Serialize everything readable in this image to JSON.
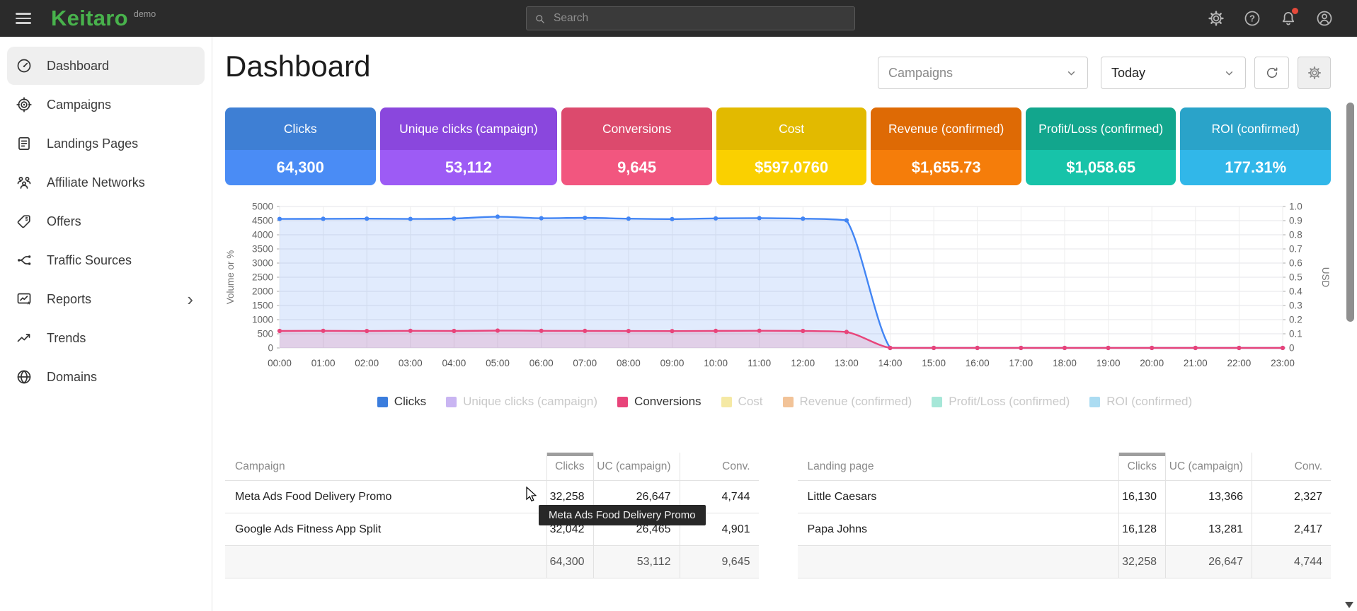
{
  "topbar": {
    "logo": "Keitaro",
    "badge": "demo",
    "search_placeholder": "Search"
  },
  "sidebar": {
    "items": [
      {
        "label": "Dashboard",
        "icon": "speedometer-icon",
        "active": true
      },
      {
        "label": "Campaigns",
        "icon": "target-icon"
      },
      {
        "label": "Landings Pages",
        "icon": "page-icon"
      },
      {
        "label": "Affiliate Networks",
        "icon": "people-icon"
      },
      {
        "label": "Offers",
        "icon": "tag-icon"
      },
      {
        "label": "Traffic Sources",
        "icon": "branch-icon"
      },
      {
        "label": "Reports",
        "icon": "report-icon",
        "chevron": true
      },
      {
        "label": "Trends",
        "icon": "trend-icon"
      },
      {
        "label": "Domains",
        "icon": "globe-icon"
      }
    ]
  },
  "header": {
    "title": "Dashboard",
    "campaign_filter": "Campaigns",
    "date_filter": "Today"
  },
  "cards": [
    {
      "label": "Clicks",
      "value": "64,300",
      "header_color": "#3e7fd4",
      "body_color": "#4a8cf5"
    },
    {
      "label": "Unique clicks (campaign)",
      "value": "53,112",
      "header_color": "#8a47dd",
      "body_color": "#9d5bf5",
      "wide": true
    },
    {
      "label": "Conversions",
      "value": "9,645",
      "header_color": "#dc4a6d",
      "body_color": "#f2567f"
    },
    {
      "label": "Cost",
      "value": "$597.0760",
      "header_color": "#e2ba00",
      "body_color": "#fad000"
    },
    {
      "label": "Revenue (confirmed)",
      "value": "$1,655.73",
      "header_color": "#de6a05",
      "body_color": "#f57d0a"
    },
    {
      "label": "Profit/Loss (confirmed)",
      "value": "$1,058.65",
      "header_color": "#12a68d",
      "body_color": "#17c3a9"
    },
    {
      "label": "ROI (confirmed)",
      "value": "177.31%",
      "header_color": "#2aa3c9",
      "body_color": "#31b7e9"
    }
  ],
  "chart_data": {
    "type": "line",
    "x": [
      "00:00",
      "01:00",
      "02:00",
      "03:00",
      "04:00",
      "05:00",
      "06:00",
      "07:00",
      "08:00",
      "09:00",
      "10:00",
      "11:00",
      "12:00",
      "13:00",
      "14:00",
      "15:00",
      "16:00",
      "17:00",
      "18:00",
      "19:00",
      "20:00",
      "21:00",
      "22:00",
      "23:00"
    ],
    "series": [
      {
        "name": "Clicks",
        "color": "#4285f4",
        "fill": "rgba(66,133,244,0.16)",
        "values": [
          4560,
          4565,
          4570,
          4560,
          4575,
          4640,
          4585,
          4600,
          4570,
          4555,
          4580,
          4590,
          4570,
          4510,
          0,
          0,
          0,
          0,
          0,
          0,
          0,
          0,
          0,
          0
        ]
      },
      {
        "name": "Conversions",
        "color": "#e8447a",
        "fill": "rgba(232,68,122,0.16)",
        "values": [
          600,
          606,
          598,
          604,
          600,
          612,
          606,
          602,
          597,
          595,
          603,
          607,
          600,
          565,
          0,
          0,
          0,
          0,
          0,
          0,
          0,
          0,
          0,
          0
        ]
      }
    ],
    "hidden_series": [
      "Unique clicks (campaign)",
      "Cost",
      "Revenue (confirmed)",
      "Profit/Loss (confirmed)",
      "ROI (confirmed)"
    ],
    "y_left": {
      "label": "Volume or %",
      "min": 0,
      "max": 5000,
      "step": 500
    },
    "y_right": {
      "label": "USD",
      "min": 0,
      "max": 1,
      "step": 0.1
    },
    "grid": true,
    "legend_position": "bottom"
  },
  "legend": [
    {
      "label": "Clicks",
      "color": "#3b7ddd",
      "active": true
    },
    {
      "label": "Unique clicks (campaign)",
      "color": "#c9b5f2",
      "active": false
    },
    {
      "label": "Conversions",
      "color": "#e8447a",
      "active": true
    },
    {
      "label": "Cost",
      "color": "#f5e9a4",
      "active": false
    },
    {
      "label": "Revenue (confirmed)",
      "color": "#f2c398",
      "active": false
    },
    {
      "label": "Profit/Loss (confirmed)",
      "color": "#a6e7d8",
      "active": false
    },
    {
      "label": "ROI (confirmed)",
      "color": "#abdcf2",
      "active": false
    }
  ],
  "tables": [
    {
      "name_header": "Campaign",
      "headers": [
        "Clicks",
        "UC (campaign)",
        "Conv."
      ],
      "rows": [
        {
          "name": "Meta Ads Food Delivery Promo",
          "cells": [
            "32,258",
            "26,647",
            "4,744"
          ]
        },
        {
          "name": "Google Ads Fitness App Split",
          "cells": [
            "32,042",
            "26,465",
            "4,901"
          ]
        }
      ],
      "footer": [
        "64,300",
        "53,112",
        "9,645"
      ]
    },
    {
      "name_header": "Landing page",
      "headers": [
        "Clicks",
        "UC (campaign)",
        "Conv."
      ],
      "rows": [
        {
          "name": "Little Caesars",
          "cells": [
            "16,130",
            "13,366",
            "2,327"
          ]
        },
        {
          "name": "Papa Johns",
          "cells": [
            "16,128",
            "13,281",
            "2,417"
          ]
        }
      ],
      "footer": [
        "32,258",
        "26,647",
        "4,744"
      ]
    }
  ],
  "tooltip": {
    "text": "Meta Ads Food Delivery Promo"
  }
}
